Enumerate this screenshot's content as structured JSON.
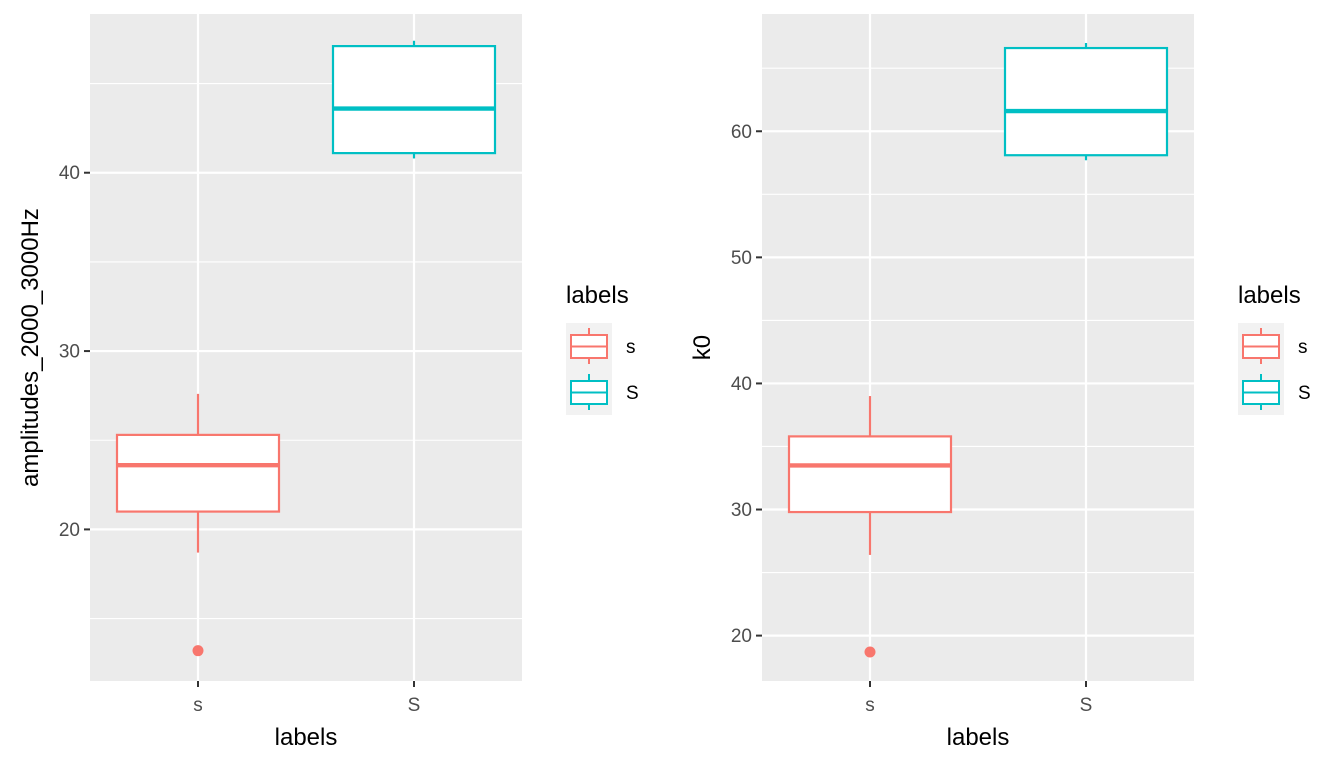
{
  "chart_data": [
    {
      "type": "boxplot",
      "xlabel": "labels",
      "ylabel": "amplitudes_2000_3000Hz",
      "categories": [
        "s",
        "S"
      ],
      "ylim": [
        11.5,
        48.9
      ],
      "y_ticks": [
        20,
        30,
        40
      ],
      "y_minor_ticks": [
        15,
        25,
        35,
        45
      ],
      "grid": true,
      "legend": {
        "title": "labels",
        "position": "right",
        "entries": [
          "s",
          "S"
        ]
      },
      "boxes": [
        {
          "category": "s",
          "color": "#F8766D",
          "whisker_low": 18.7,
          "q1": 21.0,
          "median": 23.6,
          "q3": 25.3,
          "whisker_high": 27.6,
          "outliers": [
            13.2
          ]
        },
        {
          "category": "S",
          "color": "#00BFC4",
          "whisker_low": 40.8,
          "q1": 41.1,
          "median": 43.6,
          "q3": 47.1,
          "whisker_high": 47.4,
          "outliers": []
        }
      ]
    },
    {
      "type": "boxplot",
      "xlabel": "labels",
      "ylabel": "k0",
      "categories": [
        "s",
        "S"
      ],
      "ylim": [
        16.4,
        69.3
      ],
      "y_ticks": [
        20,
        30,
        40,
        50,
        60
      ],
      "y_minor_ticks": [
        25,
        35,
        45,
        55,
        65
      ],
      "grid": true,
      "legend": {
        "title": "labels",
        "position": "right",
        "entries": [
          "s",
          "S"
        ]
      },
      "boxes": [
        {
          "category": "s",
          "color": "#F8766D",
          "whisker_low": 26.4,
          "q1": 29.8,
          "median": 33.5,
          "q3": 35.8,
          "whisker_high": 39.0,
          "outliers": [
            18.7
          ]
        },
        {
          "category": "S",
          "color": "#00BFC4",
          "whisker_low": 57.7,
          "q1": 58.1,
          "median": 61.6,
          "q3": 66.6,
          "whisker_high": 67.0,
          "outliers": []
        }
      ]
    }
  ]
}
